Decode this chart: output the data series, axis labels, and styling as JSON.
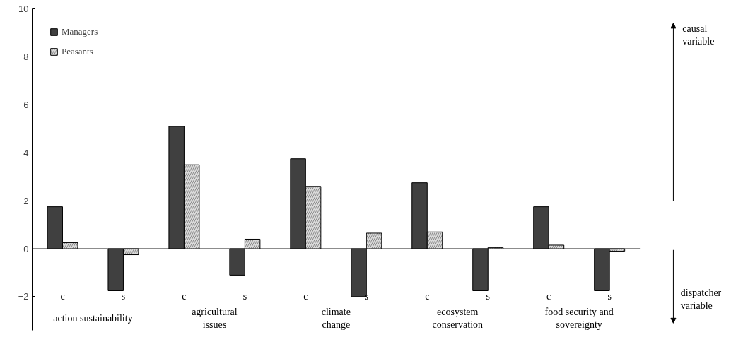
{
  "chart_data": {
    "type": "bar",
    "categories": [
      "c",
      "s",
      "c",
      "s",
      "c",
      "s",
      "c",
      "s",
      "c",
      "s"
    ],
    "series": [
      {
        "name": "Managers",
        "color": "#404040",
        "values": [
          1.75,
          -1.75,
          5.1,
          -1.1,
          3.75,
          -2.0,
          2.75,
          -1.75,
          1.75,
          -1.75
        ]
      },
      {
        "name": "Peasants",
        "color": "#d9d9d9",
        "values": [
          0.25,
          -0.25,
          3.5,
          0.4,
          2.6,
          0.65,
          0.7,
          0.05,
          0.15,
          -0.1
        ]
      }
    ],
    "ylim": [
      -3.4,
      10
    ],
    "yticks": [
      -2,
      0,
      2,
      4,
      6,
      8,
      10
    ],
    "grid": false,
    "legend": "top left",
    "ref_lines": [
      {
        "axis": "y",
        "value": 0
      }
    ],
    "annotations": [
      "action sustainability",
      "agricultural\nissues",
      "climate\nchange",
      "ecosystem\nconservation",
      "food security and\nsovereignty",
      "causal\nvariable",
      "dispatcher\nvariable"
    ]
  }
}
